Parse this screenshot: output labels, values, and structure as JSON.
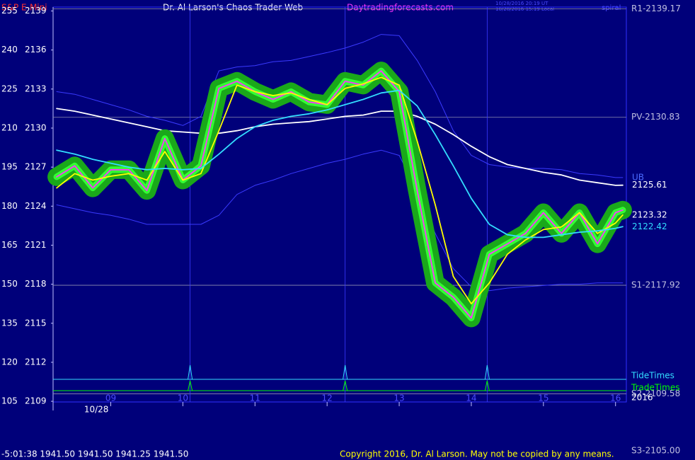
{
  "chart_data": {
    "type": "line",
    "title": "Dr. Al Larson's Chaos Trader Web",
    "symbol": "S&P E-Mini",
    "website": "Daytradingforecasts.com",
    "timestamps": [
      "10/28/2016 20:19 UT",
      "10/28/2016 15:19 Local"
    ],
    "corner_label": "spiral",
    "status": "-5:01:38  1941.50 1941.50 1941.25 1941.50",
    "copyright": "Copyright 2016, Dr. Al Larson. May not be copied by any means.",
    "x": [
      8.25,
      8.5,
      8.75,
      9,
      9.25,
      9.5,
      9.75,
      10,
      10.25,
      10.5,
      10.75,
      11,
      11.25,
      11.5,
      11.75,
      12,
      12.25,
      12.5,
      12.75,
      13,
      13.25,
      13.5,
      13.75,
      14,
      14.25,
      14.5,
      14.75,
      15,
      15.25,
      15.5,
      15.75,
      16,
      16.1
    ],
    "xlim": [
      8.2,
      16.15
    ],
    "xticks": [
      {
        "value": 9,
        "label": "09"
      },
      10,
      11,
      12,
      13,
      14,
      15,
      16
    ],
    "date_labels": [
      {
        "value": 8.8,
        "label": "10/28"
      }
    ],
    "ylim": [
      2108.95,
      2139.3
    ],
    "yticks": [
      2139,
      2136,
      2133,
      2130,
      2127,
      2124,
      2121,
      2118,
      2115,
      2112,
      2109
    ],
    "y2lim": [
      104.75,
      256.5
    ],
    "y2ticks": [
      255,
      240,
      225,
      210,
      195,
      180,
      165,
      150,
      135,
      120,
      105
    ],
    "series": [
      {
        "color": "#3a3aff",
        "end_label": "UB",
        "values": [
          2132.8,
          2132.6,
          2132.2,
          2131.8,
          2131.4,
          2130.9,
          2130.6,
          2130.2,
          2130.9,
          2134.4,
          2134.7,
          2134.8,
          2135.1,
          2135.2,
          2135.5,
          2135.8,
          2136.15,
          2136.6,
          2137.2,
          2137.1,
          2135.2,
          2132.8,
          2129.8,
          2127.9,
          2127.2,
          2127,
          2126.9,
          2126.9,
          2126.8,
          2126.5,
          2126.4,
          2126.2,
          2126.2
        ]
      },
      {
        "color": "#3a3aff",
        "values": [
          2124.1,
          2123.8,
          2123.5,
          2123.3,
          2123,
          2122.6,
          2122.6,
          2122.6,
          2122.6,
          2123.3,
          2124.9,
          2125.6,
          2126,
          2126.5,
          2126.9,
          2127.3,
          2127.6,
          2128,
          2128.3,
          2127.9,
          2125.2,
          2121.9,
          2119.2,
          2117.8,
          2117.5,
          2117.7,
          2117.8,
          2117.9,
          2118,
          2118,
          2118.1,
          2118.1,
          2118.1
        ]
      },
      {
        "color": "#ffffff",
        "end_label": "2125.61",
        "values": [
          2131.5,
          2131.3,
          2131,
          2130.7,
          2130.4,
          2130.1,
          2129.8,
          2129.7,
          2129.6,
          2129.6,
          2129.8,
          2130.1,
          2130.3,
          2130.4,
          2130.5,
          2130.7,
          2130.9,
          2131,
          2131.3,
          2131.3,
          2130.9,
          2130.3,
          2129.5,
          2128.6,
          2127.8,
          2127.2,
          2126.9,
          2126.6,
          2126.4,
          2126,
          2125.8,
          2125.6,
          2125.61
        ]
      },
      {
        "color": "#ff33ff",
        "values": [
          2126.25,
          2127.1,
          2125.4,
          2126.8,
          2126.8,
          2125.2,
          2129.2,
          2126,
          2127.1,
          2133.05,
          2133.6,
          2132.8,
          2132.2,
          2132.8,
          2132,
          2131.8,
          2133.6,
          2133.3,
          2134.4,
          2132.8,
          2125.2,
          2118.1,
          2117,
          2115.4,
          2120.3,
          2121.1,
          2121.9,
          2123.5,
          2121.9,
          2123.5,
          2121.1,
          2123.5,
          2123.7
        ]
      },
      {
        "color": "#ffff00",
        "end_label": "2123.32",
        "values": [
          2125.4,
          2126.5,
          2126,
          2126.3,
          2126.5,
          2126,
          2128.2,
          2126,
          2126.5,
          2129.8,
          2133.3,
          2132.8,
          2132.5,
          2132.7,
          2132.2,
          2131.8,
          2133.05,
          2133.4,
          2133.9,
          2133.3,
          2129,
          2124.1,
          2118.6,
          2116.5,
          2118.1,
          2120.3,
          2121.4,
          2122.2,
          2122.4,
          2123.5,
          2121.9,
          2122.7,
          2123.32
        ]
      },
      {
        "color": "#33ddff",
        "end_label": "2122.42",
        "values": [
          2128.3,
          2128,
          2127.6,
          2127.3,
          2127,
          2126.8,
          2126.9,
          2126.8,
          2126.9,
          2128,
          2129.2,
          2130.1,
          2130.6,
          2130.9,
          2131.1,
          2131.4,
          2131.8,
          2132.2,
          2132.7,
          2132.9,
          2131.7,
          2129.5,
          2127.1,
          2124.6,
          2122.6,
          2121.8,
          2121.6,
          2121.6,
          2121.8,
          2122,
          2122.1,
          2122.3,
          2122.42
        ]
      }
    ],
    "levels": [
      {
        "label": "R1-2139.17",
        "value": 2139.17
      },
      {
        "label": "PV-2130.83",
        "value": 2130.83
      },
      {
        "label": "S1-2117.92",
        "value": 2117.92
      },
      {
        "label": "S2-2109.58",
        "value": 2109.58
      }
    ],
    "time_lines": [
      10.1,
      12.25,
      14.22
    ],
    "tide_label": "TideTimes",
    "trade_label": "TradeTimes",
    "year_label": "2016",
    "s3_label": "S3-2105.00"
  }
}
